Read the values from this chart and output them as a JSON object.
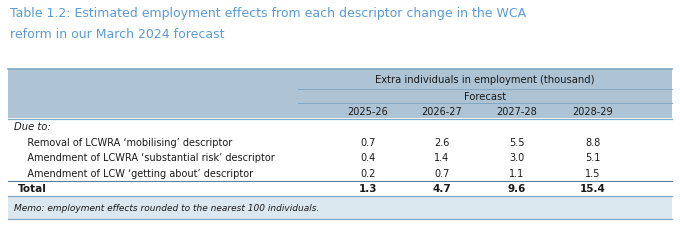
{
  "title_line1": "Table 1.2: Estimated employment effects from each descriptor change in the WCA",
  "title_line2": "reform in our March 2024 forecast",
  "title_color": "#5b9bd5",
  "header1": "Extra individuals in employment (thousand)",
  "header2": "Forecast",
  "col_headers": [
    "2025-26",
    "2026-27",
    "2027-28",
    "2028-29"
  ],
  "due_to_label": "Due to:",
  "rows": [
    {
      "label": "   Removal of LCWRA ‘mobilising’ descriptor",
      "values": [
        "0.7",
        "2.6",
        "5.5",
        "8.8"
      ],
      "bold": false
    },
    {
      "label": "   Amendment of LCWRA ‘substantial risk’ descriptor",
      "values": [
        "0.4",
        "1.4",
        "3.0",
        "5.1"
      ],
      "bold": false
    },
    {
      "label": "   Amendment of LCW ‘getting about’ descriptor",
      "values": [
        "0.2",
        "0.7",
        "1.1",
        "1.5"
      ],
      "bold": false
    },
    {
      "label": "Total",
      "values": [
        "1.3",
        "4.7",
        "9.6",
        "15.4"
      ],
      "bold": true
    }
  ],
  "memo": "Memo: employment effects rounded to the nearest 100 individuals.",
  "header_bg": "#aec4d4",
  "memo_bg": "#dce8f0",
  "white_bg": "#ffffff",
  "border_color": "#7fa8c4",
  "dark_border": "#5a7e96",
  "text_color": "#1a1a1a",
  "figsize": [
    6.8,
    2.3
  ],
  "dpi": 100
}
